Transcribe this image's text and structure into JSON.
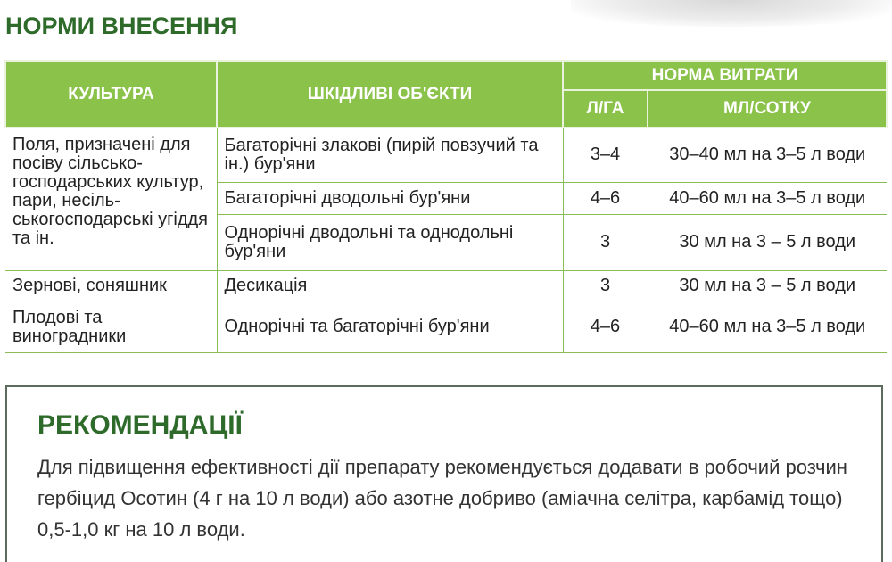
{
  "title": "НОРМИ ВНЕСЕННЯ",
  "table": {
    "headers": {
      "culture": "КУЛЬТУРА",
      "pests": "ШКІДЛИВІ ОБ'ЄКТИ",
      "rate": "НОРМА ВИТРАТИ",
      "l_ha": "Л/ГА",
      "ml_sotka": "МЛ/СОТКУ"
    },
    "rows": [
      {
        "culture": "Поля, призначені для посіву сільсько-господарських культур, пари, несіль-ськогосподарські угіддя та ін.",
        "pests": "Багаторічні злакові (пирій повзучий та ін.) бур'яни",
        "l_ha": "3–4",
        "ml": "30–40 мл на 3–5 л води"
      },
      {
        "pests": "Багаторічні дводольні бур'яни",
        "l_ha": "4–6",
        "ml": "40–60 мл на 3–5 л води"
      },
      {
        "pests": "Однорічні дводольні та однодольні бур'яни",
        "l_ha": "3",
        "ml": "30 мл на 3 – 5 л води"
      },
      {
        "culture": "Зернові, соняшник",
        "pests": "Десикація",
        "l_ha": "3",
        "ml": "30 мл на 3 – 5 л води"
      },
      {
        "culture": "Плодові та виноградники",
        "pests": "Однорічні та багаторічні бур'яни",
        "l_ha": "4–6",
        "ml": "40–60 мл на 3–5 л води"
      }
    ]
  },
  "recommendations": {
    "title": "РЕКОМЕНДАЦІЇ",
    "text": "Для підвищення ефективності дії препарату рекомендується додавати в робочий розчин гербіцид Осотин (4 г на 10 л води) або азотне добриво (аміачна селітра, карбамід тощо) 0,5-1,0 кг на 10 л води."
  },
  "colors": {
    "header_green": "#8bc24a",
    "title_green": "#2e6b2a"
  }
}
